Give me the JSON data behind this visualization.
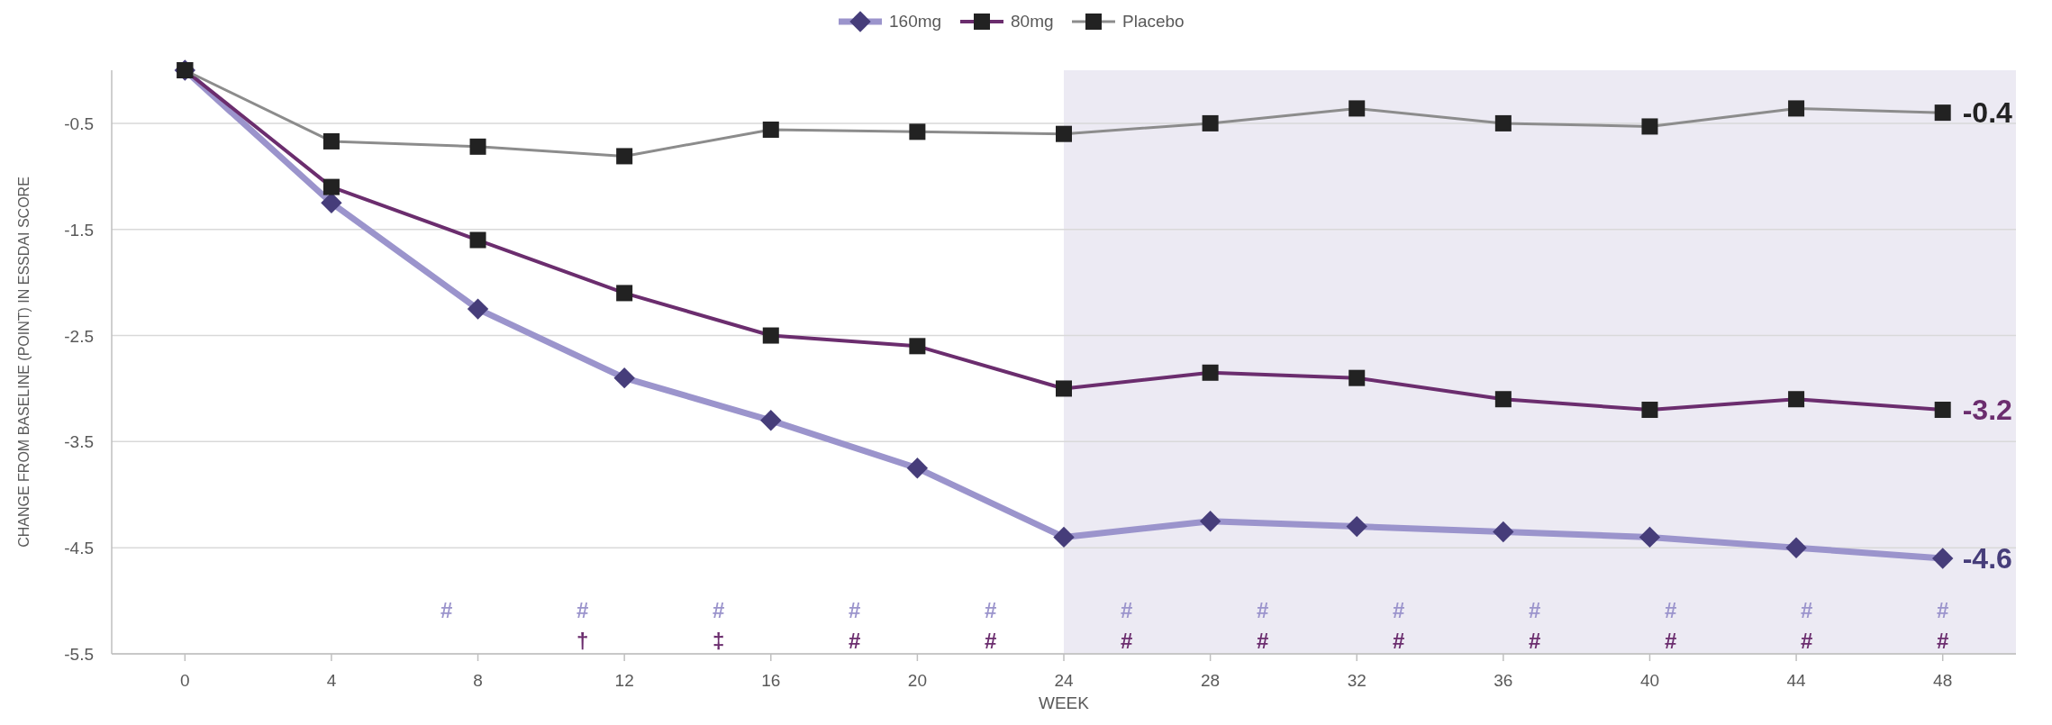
{
  "chart_data": {
    "type": "line",
    "xlabel": "WEEK",
    "ylabel": "CHANGE FROM BASELINE (POINT) IN ESSDAI SCORE",
    "x": [
      0,
      4,
      8,
      12,
      16,
      20,
      24,
      28,
      32,
      36,
      40,
      44,
      48
    ],
    "xlim": [
      -2,
      50
    ],
    "xticks": [
      0,
      4,
      8,
      12,
      16,
      20,
      24,
      28,
      32,
      36,
      40,
      44,
      48
    ],
    "ylim": [
      -5.5,
      0
    ],
    "yticks": [
      -0.5,
      -1.5,
      -2.5,
      -3.5,
      -4.5,
      -5.5
    ],
    "grid": "y",
    "legend": "top",
    "line_style": "solid",
    "series": [
      {
        "name": "160mg",
        "color": "#9b94cc",
        "marker": "diamond",
        "values": [
          0,
          -1.25,
          -2.25,
          -2.9,
          -3.3,
          -3.75,
          -4.4,
          -4.25,
          -4.3,
          -4.35,
          -4.4,
          -4.5,
          -4.6
        ],
        "value_labels": [
          null,
          null,
          null,
          null,
          null,
          null,
          null,
          null,
          null,
          null,
          null,
          null,
          "-4.6"
        ]
      },
      {
        "name": "80mg",
        "color": "#6b2d6e",
        "marker": "square",
        "values": [
          0,
          -1.1,
          -1.6,
          -2.1,
          -2.5,
          -2.6,
          -3.0,
          -2.85,
          -2.9,
          -3.1,
          -3.2,
          -3.1,
          -3.2
        ],
        "value_labels": [
          null,
          null,
          null,
          null,
          null,
          null,
          null,
          null,
          null,
          null,
          null,
          null,
          "-3.2"
        ]
      },
      {
        "name": "Placebo",
        "color": "#8c8c8c",
        "marker": "square",
        "values": [
          0,
          -0.67,
          -0.72,
          -0.81,
          -0.56,
          -0.58,
          -0.6,
          -0.5,
          -0.36,
          -0.5,
          -0.53,
          -0.36,
          -0.4
        ],
        "value_labels": [
          null,
          null,
          null,
          null,
          null,
          null,
          null,
          null,
          null,
          null,
          null,
          null,
          "-0.4"
        ]
      }
    ],
    "bands": [
      {
        "axis": "x",
        "from": 24,
        "to": 50,
        "color": "#eceaf3"
      }
    ],
    "annotations": [
      "#",
      "#",
      "#",
      "#",
      "#",
      "#",
      "#",
      "#",
      "#",
      "#",
      "#",
      "#",
      "†",
      "‡",
      "#",
      "#",
      "#",
      "#",
      "#",
      "#",
      "#",
      "#",
      "#"
    ]
  }
}
